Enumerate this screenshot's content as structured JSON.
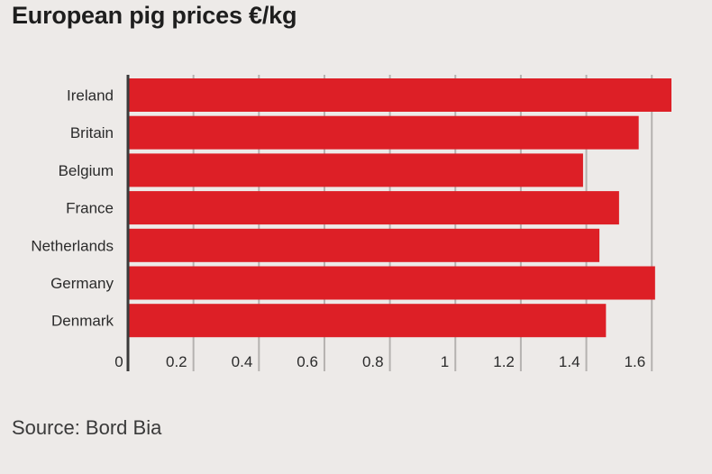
{
  "title": "European pig prices €/kg",
  "source": "Source: Bord Bia",
  "chart_data": {
    "type": "bar",
    "orientation": "horizontal",
    "title": "European pig prices €/kg",
    "categories": [
      "Ireland",
      "Britain",
      "Belgium",
      "France",
      "Netherlands",
      "Germany",
      "Denmark"
    ],
    "values": [
      1.66,
      1.56,
      1.39,
      1.5,
      1.44,
      1.61,
      1.46
    ],
    "xlim": [
      0,
      1.66
    ],
    "ticks": [
      0,
      0.2,
      0.4,
      0.6,
      0.8,
      1,
      1.2,
      1.4,
      1.6
    ],
    "tick_labels": [
      "0",
      "0.2",
      "0.4",
      "0.6",
      "0.8",
      "1",
      "1.2",
      "1.4",
      "1.6"
    ],
    "grid": "vertical",
    "bar_color": "#dd1f26",
    "grid_color": "#b5b2b0"
  }
}
